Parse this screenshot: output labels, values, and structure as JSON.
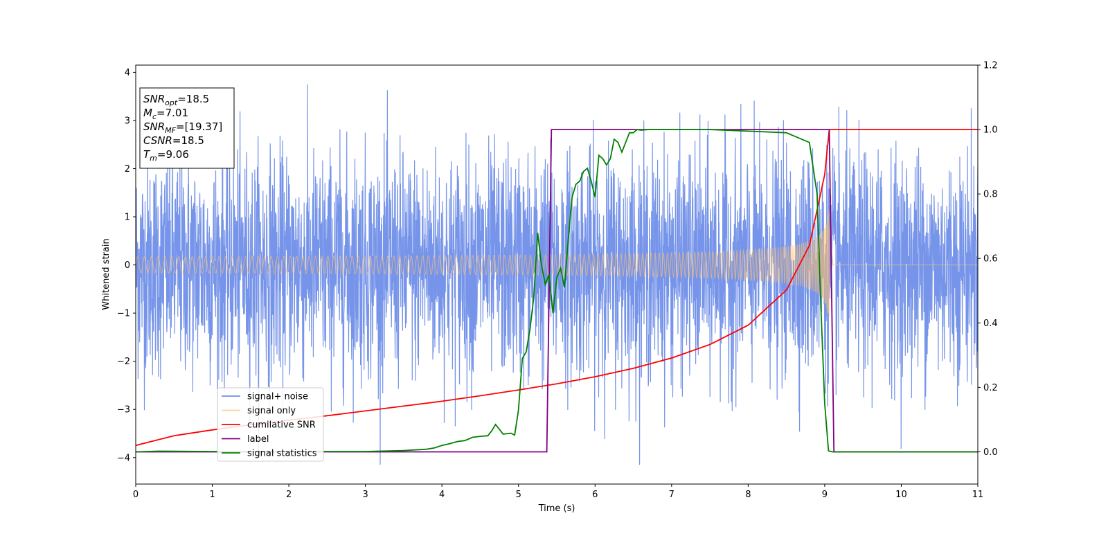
{
  "chart_data": {
    "type": "line",
    "xlabel": "Time (s)",
    "ylabel": "Whitened strain",
    "xlim": [
      0,
      11
    ],
    "ylim_left": [
      -4.55,
      4.15
    ],
    "ylim_right": [
      -0.1,
      1.2
    ],
    "x_ticks": [
      0,
      1,
      2,
      3,
      4,
      5,
      6,
      7,
      8,
      9,
      10,
      11
    ],
    "y_ticks_left": [
      -4,
      -3,
      -2,
      -1,
      0,
      1,
      2,
      3,
      4
    ],
    "y_ticks_right": [
      0.0,
      0.2,
      0.4,
      0.6,
      0.8,
      1.0,
      1.2
    ],
    "legend_position": "lower-left",
    "info_box": [
      {
        "base": "SNR",
        "sub": "opt",
        "value": "=18.5"
      },
      {
        "base": "M",
        "sub": "c",
        "value": "=7.01"
      },
      {
        "base": "SNR",
        "sub": "MF",
        "value": "=[19.37]"
      },
      {
        "base": "CSNR",
        "sub": "",
        "value": "=18.5"
      },
      {
        "base": "T",
        "sub": "m",
        "value": "=9.06"
      }
    ],
    "series": [
      {
        "name": "signal+ noise",
        "axis": "left",
        "color": "#6f8ee8",
        "kind": "noise_band",
        "noise_std": 1.0,
        "peak_range": [
          -4.15,
          3.75
        ]
      },
      {
        "name": "signal only",
        "axis": "left",
        "color": "#ffbf70",
        "kind": "chirp",
        "amplitude_start": 0.08,
        "amplitude_end": 1.25,
        "merger_time": 9.06
      },
      {
        "name": "cumilative SNR",
        "axis": "right",
        "color": "#ff0000",
        "x": [
          0,
          0.5,
          1,
          1.5,
          2,
          2.5,
          3,
          3.5,
          4,
          4.5,
          5,
          5.5,
          6,
          6.5,
          7,
          7.5,
          8,
          8.5,
          8.8,
          9.0,
          9.06,
          11
        ],
        "y": [
          0.02,
          0.05,
          0.068,
          0.084,
          0.098,
          0.112,
          0.127,
          0.142,
          0.157,
          0.174,
          0.192,
          0.211,
          0.233,
          0.259,
          0.291,
          0.333,
          0.393,
          0.502,
          0.64,
          0.86,
          1.0,
          1.0
        ]
      },
      {
        "name": "label",
        "axis": "right",
        "color": "#800080",
        "x": [
          0,
          5.37,
          5.43,
          9.06,
          9.12,
          11
        ],
        "y": [
          0,
          0,
          1,
          1,
          0,
          0
        ]
      },
      {
        "name": "signal statistics",
        "axis": "right",
        "color": "#008000",
        "x": [
          0,
          0.3,
          1,
          2,
          3,
          3.5,
          3.8,
          3.9,
          4.0,
          4.1,
          4.2,
          4.3,
          4.4,
          4.5,
          4.6,
          4.65,
          4.7,
          4.75,
          4.8,
          4.9,
          4.95,
          5.0,
          5.05,
          5.1,
          5.15,
          5.2,
          5.25,
          5.3,
          5.35,
          5.4,
          5.45,
          5.5,
          5.55,
          5.6,
          5.65,
          5.7,
          5.75,
          5.8,
          5.85,
          5.9,
          5.95,
          6.0,
          6.05,
          6.1,
          6.15,
          6.2,
          6.25,
          6.3,
          6.35,
          6.4,
          6.45,
          6.5,
          6.55,
          6.6,
          6.65,
          6.7,
          6.8,
          7.0,
          7.2,
          7.5,
          8.0,
          8.5,
          8.8,
          8.9,
          8.95,
          9.0,
          9.05,
          9.1,
          9.13,
          9.2,
          11
        ],
        "y": [
          0,
          0.002,
          0.001,
          0.001,
          0.001,
          0.004,
          0.008,
          0.012,
          0.02,
          0.025,
          0.032,
          0.035,
          0.045,
          0.048,
          0.05,
          0.065,
          0.085,
          0.07,
          0.055,
          0.058,
          0.052,
          0.13,
          0.29,
          0.31,
          0.38,
          0.48,
          0.68,
          0.58,
          0.52,
          0.55,
          0.43,
          0.54,
          0.57,
          0.51,
          0.66,
          0.79,
          0.83,
          0.84,
          0.87,
          0.88,
          0.84,
          0.79,
          0.92,
          0.91,
          0.89,
          0.91,
          0.97,
          0.96,
          0.93,
          0.96,
          0.99,
          0.99,
          1.0,
          0.998,
          0.999,
          1.0,
          1.0,
          1.0,
          1.0,
          1.0,
          0.995,
          0.99,
          0.96,
          0.8,
          0.45,
          0.15,
          0.003,
          0.0,
          0.0,
          0.0,
          0.0
        ]
      }
    ]
  }
}
